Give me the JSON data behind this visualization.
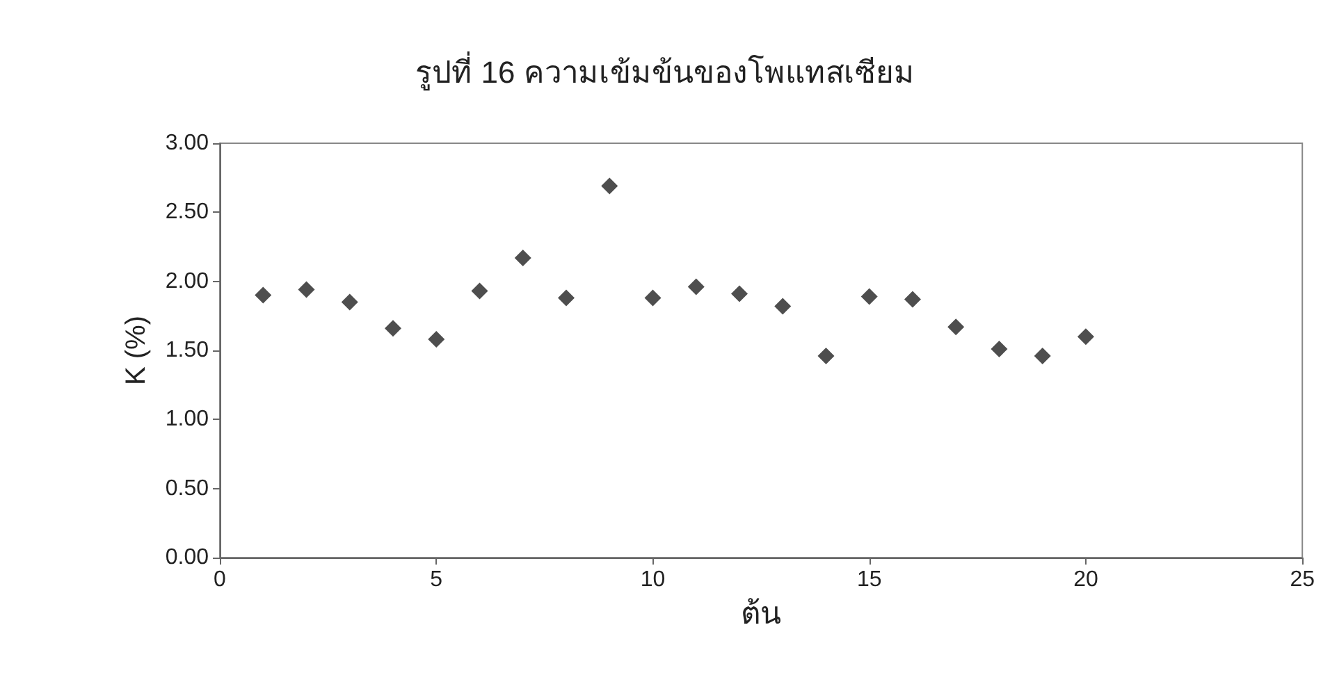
{
  "chart_data": {
    "type": "scatter",
    "title": "รูปที่ 16 ความเข้มข้นของโพแทสเซียม",
    "xlabel": "ต้น",
    "ylabel": "K (%)",
    "x": [
      1,
      2,
      3,
      4,
      5,
      6,
      7,
      8,
      9,
      10,
      11,
      12,
      13,
      14,
      15,
      16,
      17,
      18,
      19,
      20
    ],
    "series": [
      {
        "color": "#222222",
        "values": [
          1.9,
          1.94,
          1.85,
          1.66,
          1.58,
          1.93,
          2.17,
          1.88,
          2.69,
          1.88,
          1.96,
          1.91,
          1.82,
          1.46,
          1.89,
          1.87,
          1.67,
          1.51,
          1.46,
          1.6
        ]
      }
    ],
    "xlim": [
      0,
      25
    ],
    "xticks": [
      0,
      5,
      10,
      15,
      20,
      25
    ],
    "ylim": [
      0,
      3
    ],
    "yticks": [
      {
        "value": 0,
        "label": "0.00"
      },
      {
        "value": 0.5,
        "label": "0.50"
      },
      {
        "value": 1,
        "label": "1.00"
      },
      {
        "value": 1.5,
        "label": "1.50"
      },
      {
        "value": 2,
        "label": "2.00"
      },
      {
        "value": 2.5,
        "label": "2.50"
      },
      {
        "value": 3,
        "label": "3.00"
      }
    ],
    "grid": false,
    "marker": "diamond"
  }
}
